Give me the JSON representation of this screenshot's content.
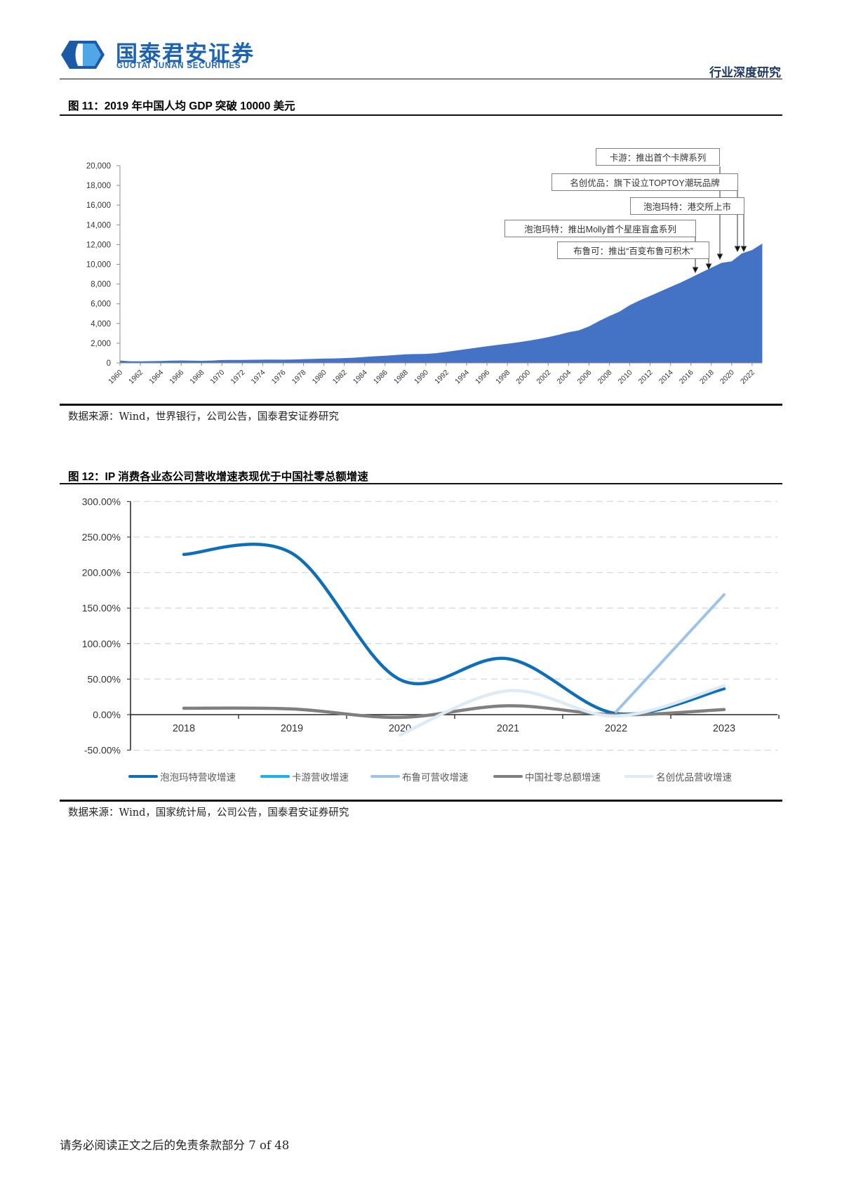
{
  "header": {
    "brand_cn": "国泰君安证券",
    "brand_en": "GUOTAI JUNAN SECURITIES",
    "report_type": "行业深度研究"
  },
  "figure11": {
    "title": "图 11：2019 年中国人均 GDP 突破 10000 美元",
    "source": "数据来源：Wind，世界银行，公司公告，国泰君安证券研究",
    "annotations": [
      {
        "text": "卡游：推出首个卡牌系列",
        "target_year": 2018.8
      },
      {
        "text": "名创优品：旗下设立TOPTOY潮玩品牌",
        "target_year": 2020.5
      },
      {
        "text": "泡泡玛特：港交所上市",
        "target_year": 2021.2
      },
      {
        "text": "泡泡玛特：推出Molly首个星座盲盒系列",
        "target_year": 2016.5
      },
      {
        "text": "布鲁可：推出“百变布鲁可积木”",
        "target_year": 2017.7
      }
    ]
  },
  "figure12": {
    "title": "图 12：IP 消费各业态公司营收增速表现优于中国社零总额增速",
    "source": "数据来源：Wind，国家统计局，公司公告，国泰君安证券研究"
  },
  "footer": {
    "text": "请务必阅读正文之后的免责条款部分 7 of 48",
    "page": "7 of 48"
  },
  "colors": {
    "brand": "#1E63B0",
    "area_fill": "#4472C4",
    "gridline": "#D9D9D9"
  },
  "chart_data": [
    {
      "type": "area",
      "title": "2019 年中国人均 GDP 突破 10000 美元",
      "xlabel": "",
      "ylabel": "",
      "ylim": [
        0,
        20000
      ],
      "yticks": [
        0,
        2000,
        4000,
        6000,
        8000,
        10000,
        12000,
        14000,
        16000,
        18000,
        20000
      ],
      "ytick_labels": [
        "0",
        "2,000",
        "4,000",
        "6,000",
        "8,000",
        "10,000",
        "12,000",
        "14,000",
        "16,000",
        "18,000",
        "20,000"
      ],
      "xtick_labels": [
        "1960",
        "1962",
        "1964",
        "1966",
        "1968",
        "1970",
        "1972",
        "1974",
        "1976",
        "1978",
        "1980",
        "1982",
        "1984",
        "1986",
        "1988",
        "1990",
        "1992",
        "1994",
        "1996",
        "1998",
        "2000",
        "2002",
        "2004",
        "2006",
        "2008",
        "2010",
        "2012",
        "2014",
        "2016",
        "2018",
        "2020",
        "2022"
      ],
      "grid": false,
      "legend": null,
      "color": "#4472C4",
      "x": [
        1960,
        1961,
        1962,
        1963,
        1964,
        1965,
        1966,
        1967,
        1968,
        1969,
        1970,
        1971,
        1972,
        1973,
        1974,
        1975,
        1976,
        1977,
        1978,
        1979,
        1980,
        1981,
        1982,
        1983,
        1984,
        1985,
        1986,
        1987,
        1988,
        1989,
        1990,
        1991,
        1992,
        1993,
        1994,
        1995,
        1996,
        1997,
        1998,
        1999,
        2000,
        2001,
        2002,
        2003,
        2004,
        2005,
        2006,
        2007,
        2008,
        2009,
        2010,
        2011,
        2012,
        2013,
        2014,
        2015,
        2016,
        2017,
        2018,
        2019,
        2020,
        2021,
        2022,
        2023
      ],
      "values": [
        240,
        170,
        160,
        175,
        200,
        230,
        250,
        230,
        215,
        245,
        290,
        300,
        305,
        320,
        325,
        345,
        330,
        350,
        385,
        410,
        440,
        455,
        490,
        535,
        605,
        675,
        725,
        795,
        870,
        895,
        915,
        990,
        1120,
        1260,
        1410,
        1550,
        1690,
        1825,
        1950,
        2080,
        2240,
        2410,
        2610,
        2850,
        3120,
        3300,
        3700,
        4250,
        4750,
        5200,
        5850,
        6350,
        6800,
        7250,
        7700,
        8150,
        8650,
        9150,
        9650,
        10140,
        10300,
        11100,
        11450,
        12100
      ]
    },
    {
      "type": "line",
      "title": "IP 消费各业态公司营收增速表现优于中国社零总额增速",
      "xlabel": "",
      "ylabel": "",
      "ylim": [
        -50,
        300
      ],
      "yticks": [
        300,
        250,
        200,
        150,
        100,
        50,
        0,
        -50
      ],
      "ytick_labels": [
        "300.00%",
        "250.00%",
        "200.00%",
        "150.00%",
        "100.00%",
        "50.00%",
        "0.00%",
        "-50.00%"
      ],
      "grid": true,
      "legend_position": "bottom",
      "categories": [
        "2018",
        "2019",
        "2020",
        "2021",
        "2022",
        "2023"
      ],
      "series": [
        {
          "name": "泡泡玛特营收增速",
          "color": "#0E6EB8",
          "width": 4.5,
          "values": [
            225.5,
            227.2,
            49.3,
            78.7,
            1.6,
            36.5
          ]
        },
        {
          "name": "卡游营收增速",
          "color": "#1EB0E8",
          "width": 4,
          "values": [
            null,
            null,
            null,
            null,
            null,
            null
          ]
        },
        {
          "name": "布鲁可营收增速",
          "color": "#9DC3E6",
          "width": 4,
          "values": [
            null,
            null,
            null,
            null,
            4.0,
            169.0
          ]
        },
        {
          "name": "中国社零总额增速",
          "color": "#7F7F7F",
          "width": 4.5,
          "values": [
            9.0,
            8.0,
            -3.9,
            12.5,
            -0.2,
            7.2
          ]
        },
        {
          "name": "名创优品营收增速",
          "color": "#DDEBF7",
          "width": 4.5,
          "values": [
            null,
            null,
            -28.7,
            33.6,
            -2.0,
            40.5
          ]
        }
      ]
    }
  ]
}
